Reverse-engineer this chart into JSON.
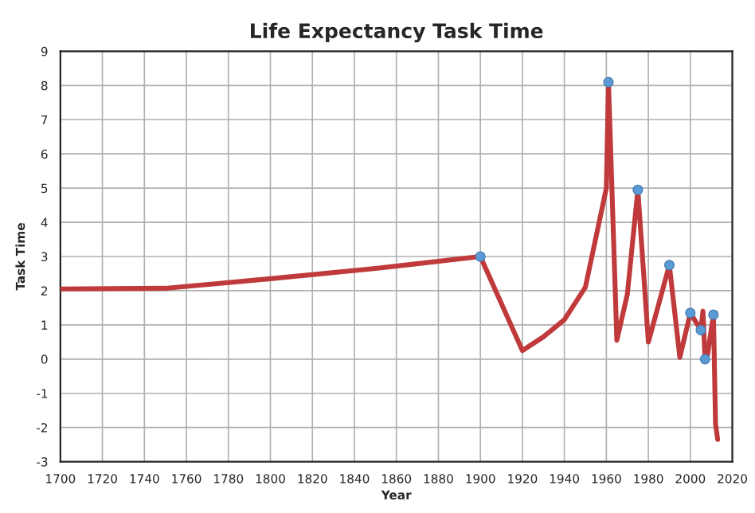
{
  "chart_data": {
    "type": "line",
    "title": "Life Expectancy Task Time",
    "xlabel": "Year",
    "ylabel": "Task Time",
    "series": [
      {
        "color": "#c0393b",
        "marker": "none",
        "x": [
          1700,
          1750,
          1800,
          1850,
          1900,
          1920,
          1930,
          1940,
          1950,
          1960,
          1961,
          1965,
          1970,
          1975,
          1980,
          1990,
          1995,
          2000,
          2005,
          2006,
          2007,
          2008,
          2011,
          2012,
          2013
        ],
        "values": [
          2.05,
          2.07,
          2.35,
          2.65,
          3.0,
          0.25,
          0.65,
          1.15,
          2.1,
          5.0,
          8.1,
          0.55,
          1.9,
          4.95,
          0.5,
          2.75,
          0.05,
          1.35,
          0.85,
          1.4,
          0.0,
          0.05,
          1.3,
          -1.9,
          -2.35
        ]
      },
      {
        "type": "scatter",
        "color": "#5b9bd5",
        "marker": "circle",
        "x": [
          1900,
          1961,
          1975,
          1990,
          2000,
          2005,
          2007,
          2011
        ],
        "values": [
          3.0,
          8.1,
          4.95,
          2.75,
          1.35,
          0.85,
          0.0,
          1.3
        ]
      }
    ],
    "xlim": [
      1700,
      2020
    ],
    "xticks": [
      1700,
      1720,
      1740,
      1760,
      1780,
      1800,
      1820,
      1840,
      1860,
      1880,
      1900,
      1920,
      1940,
      1960,
      1980,
      2000,
      2020
    ],
    "ylim": [
      -3,
      9
    ],
    "yticks": [
      -3,
      -2,
      -1,
      0,
      1,
      2,
      3,
      4,
      5,
      6,
      7,
      8,
      9
    ],
    "grid": true,
    "legend": false
  }
}
